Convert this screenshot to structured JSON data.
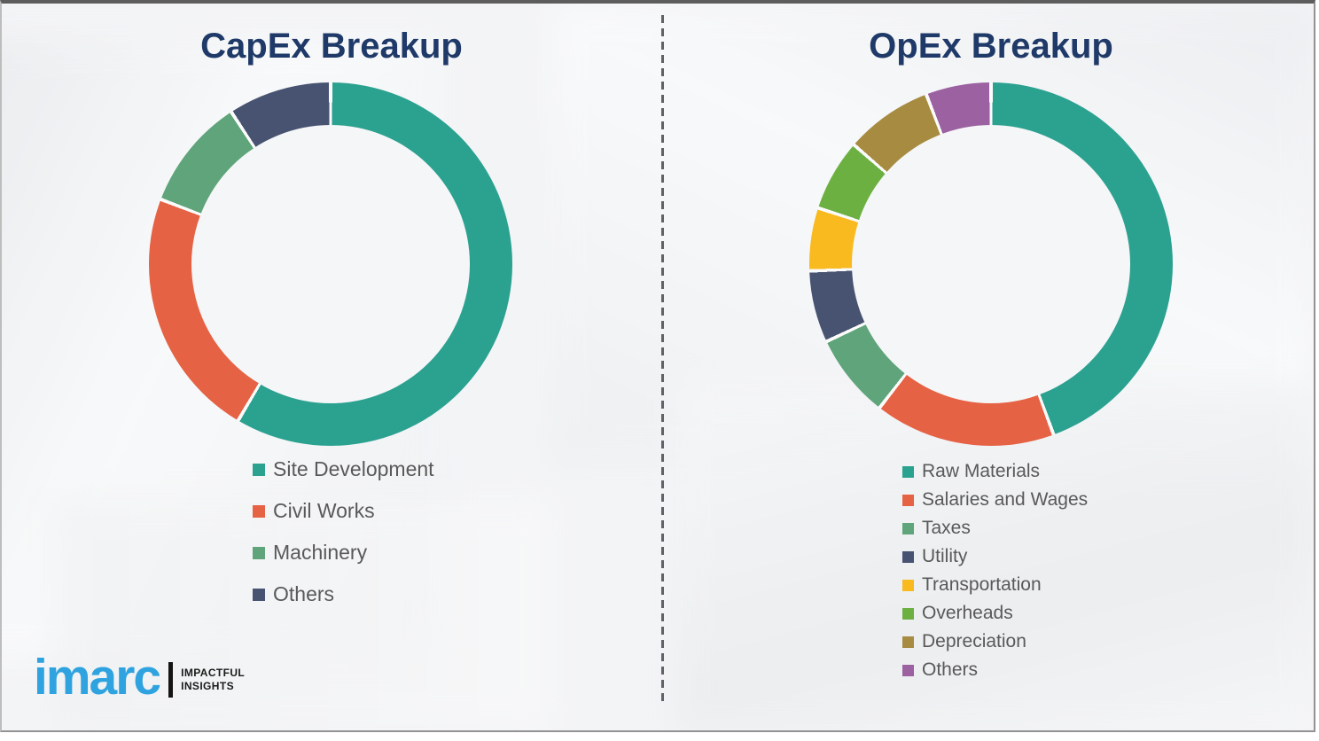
{
  "theme": {
    "title_color": "#1f3a68",
    "legend_text_color": "#595959",
    "divider_color": "#5f6368",
    "slide_background": "#f3f4f6",
    "segment_gap_color": "#fbfbfb"
  },
  "chart_data": [
    {
      "type": "donut",
      "title": "CapEx Breakup",
      "categories": [
        "Site Development",
        "Civil Works",
        "Machinery",
        "Others"
      ],
      "values": [
        58.5,
        22.3,
        10.0,
        9.2
      ],
      "units": "%",
      "colors": [
        "#2ba190",
        "#e56244",
        "#5fa47a",
        "#485372"
      ],
      "legend_position": "below-left",
      "start_angle_deg": 0,
      "direction": "clockwise"
    },
    {
      "type": "donut",
      "title": "OpEx Breakup",
      "categories": [
        "Raw Materials",
        "Salaries and Wages",
        "Taxes",
        "Utility",
        "Transportation",
        "Overheads",
        "Depreciation",
        "Others"
      ],
      "values": [
        44.4,
        16.1,
        7.5,
        6.4,
        5.6,
        6.4,
        7.8,
        5.8
      ],
      "units": "%",
      "colors": [
        "#2ba190",
        "#e56244",
        "#5fa47a",
        "#485372",
        "#f8ba1e",
        "#6db042",
        "#a68b40",
        "#9b61a1"
      ],
      "legend_position": "below-left",
      "start_angle_deg": 0,
      "direction": "clockwise"
    }
  ],
  "logo": {
    "wordmark": "imarc",
    "tagline_line1": "IMPACTFUL",
    "tagline_line2": "INSIGHTS",
    "brand_color": "#2fa3df"
  }
}
